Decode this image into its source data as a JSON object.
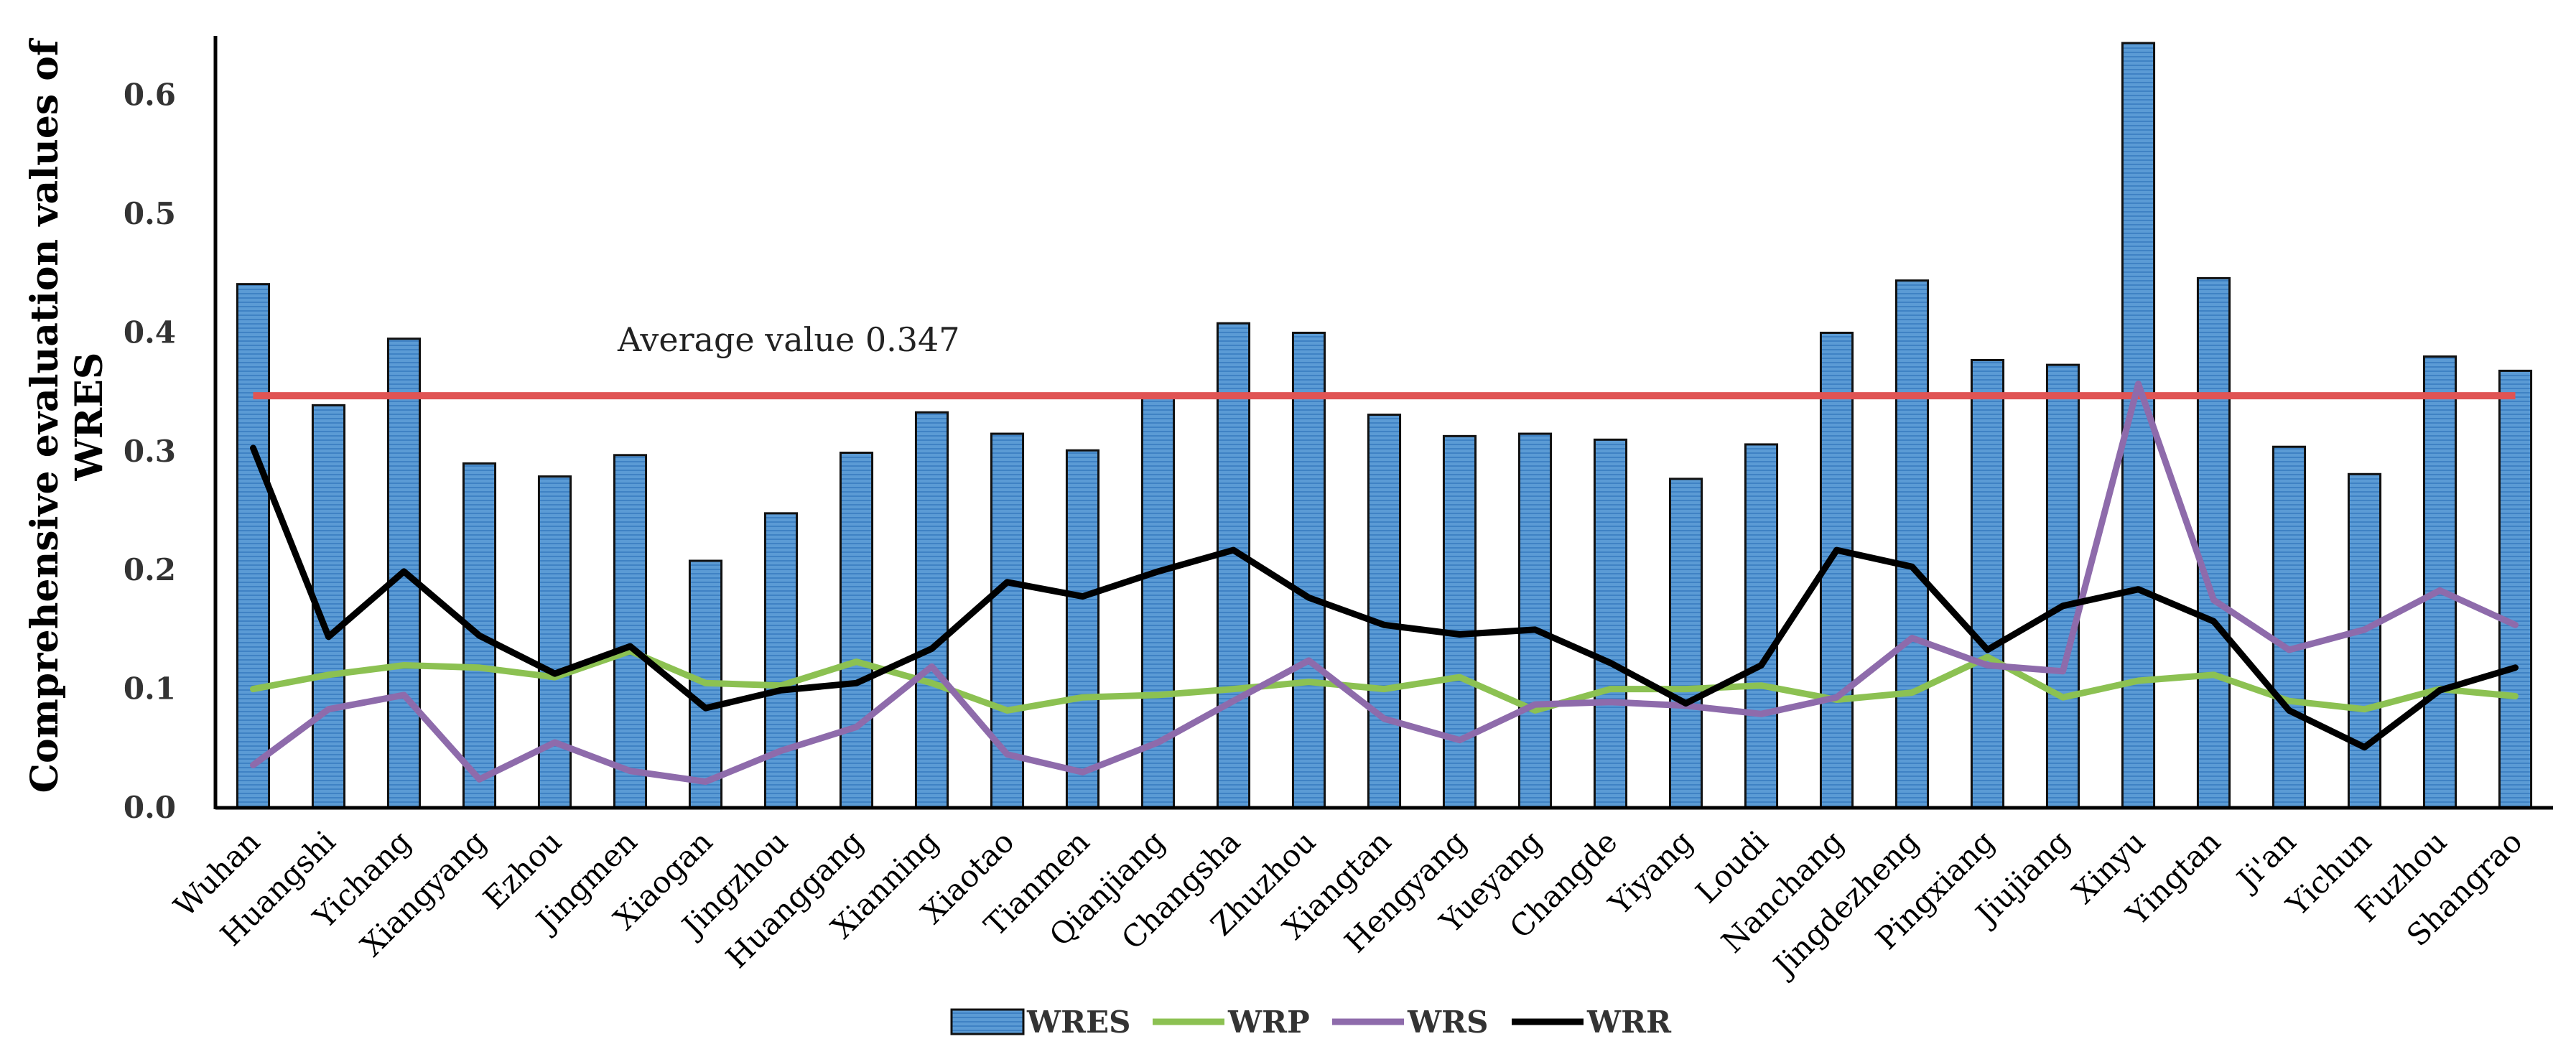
{
  "chart_data": {
    "type": "bar",
    "ylabel": [
      "Comprehensive evaluation values of",
      "WRES"
    ],
    "ylim": [
      0,
      0.65
    ],
    "yticks": [
      "0.0",
      "0.1",
      "0.2",
      "0.3",
      "0.4",
      "0.5",
      "0.6"
    ],
    "categories": [
      "Wuhan",
      "Huangshi",
      "Yichang",
      "Xiangyang",
      "Ezhou",
      "Jingmen",
      "Xiaogan",
      "Jingzhou",
      "Huanggang",
      "Xianning",
      "Xiaotao",
      "Tianmen",
      "Qianjiang",
      "Changsha",
      "Zhuzhou",
      "Xiangtan",
      "Hengyang",
      "Yueyang",
      "Changde",
      "Yiyang",
      "Loudi",
      "Nanchang",
      "Jingdezheng",
      "Pingxiang",
      "Jiujiang",
      "Xinyu",
      "Yingtan",
      "Ji'an",
      "Yichun",
      "Fuzhou",
      "Shangrao"
    ],
    "bar_series": {
      "name": "WRES",
      "color": "#5b9bd5",
      "values": [
        0.441,
        0.339,
        0.395,
        0.29,
        0.279,
        0.297,
        0.208,
        0.248,
        0.299,
        0.333,
        0.315,
        0.301,
        0.348,
        0.408,
        0.4,
        0.331,
        0.313,
        0.315,
        0.31,
        0.277,
        0.306,
        0.4,
        0.444,
        0.377,
        0.373,
        0.644,
        0.446,
        0.304,
        0.281,
        0.38,
        0.368
      ]
    },
    "line_series": [
      {
        "name": "WRP",
        "color": "#8cc152",
        "values": [
          0.1,
          0.112,
          0.12,
          0.118,
          0.11,
          0.132,
          0.105,
          0.103,
          0.123,
          0.105,
          0.082,
          0.093,
          0.095,
          0.1,
          0.106,
          0.1,
          0.11,
          0.082,
          0.1,
          0.1,
          0.103,
          0.091,
          0.097,
          0.127,
          0.093,
          0.107,
          0.112,
          0.09,
          0.083,
          0.1,
          0.094
        ]
      },
      {
        "name": "WRS",
        "color": "#8e6bab",
        "values": [
          0.036,
          0.083,
          0.095,
          0.024,
          0.055,
          0.031,
          0.022,
          0.048,
          0.068,
          0.119,
          0.045,
          0.03,
          0.055,
          0.09,
          0.124,
          0.075,
          0.057,
          0.087,
          0.089,
          0.086,
          0.079,
          0.093,
          0.143,
          0.12,
          0.115,
          0.357,
          0.175,
          0.133,
          0.15,
          0.183,
          0.154
        ]
      },
      {
        "name": "WRR",
        "color": "#000000",
        "values": [
          0.303,
          0.144,
          0.199,
          0.145,
          0.113,
          0.136,
          0.084,
          0.099,
          0.105,
          0.134,
          0.19,
          0.178,
          0.199,
          0.217,
          0.177,
          0.154,
          0.146,
          0.15,
          0.122,
          0.088,
          0.12,
          0.217,
          0.203,
          0.133,
          0.17,
          0.184,
          0.157,
          0.082,
          0.051,
          0.099,
          0.118
        ]
      }
    ],
    "average": {
      "value": 0.347,
      "label": "Average value 0.347",
      "color": "#e05454"
    },
    "legend": [
      "WRES",
      "WRP",
      "WRS",
      "WRR"
    ],
    "legend_position": "bottom-center"
  }
}
